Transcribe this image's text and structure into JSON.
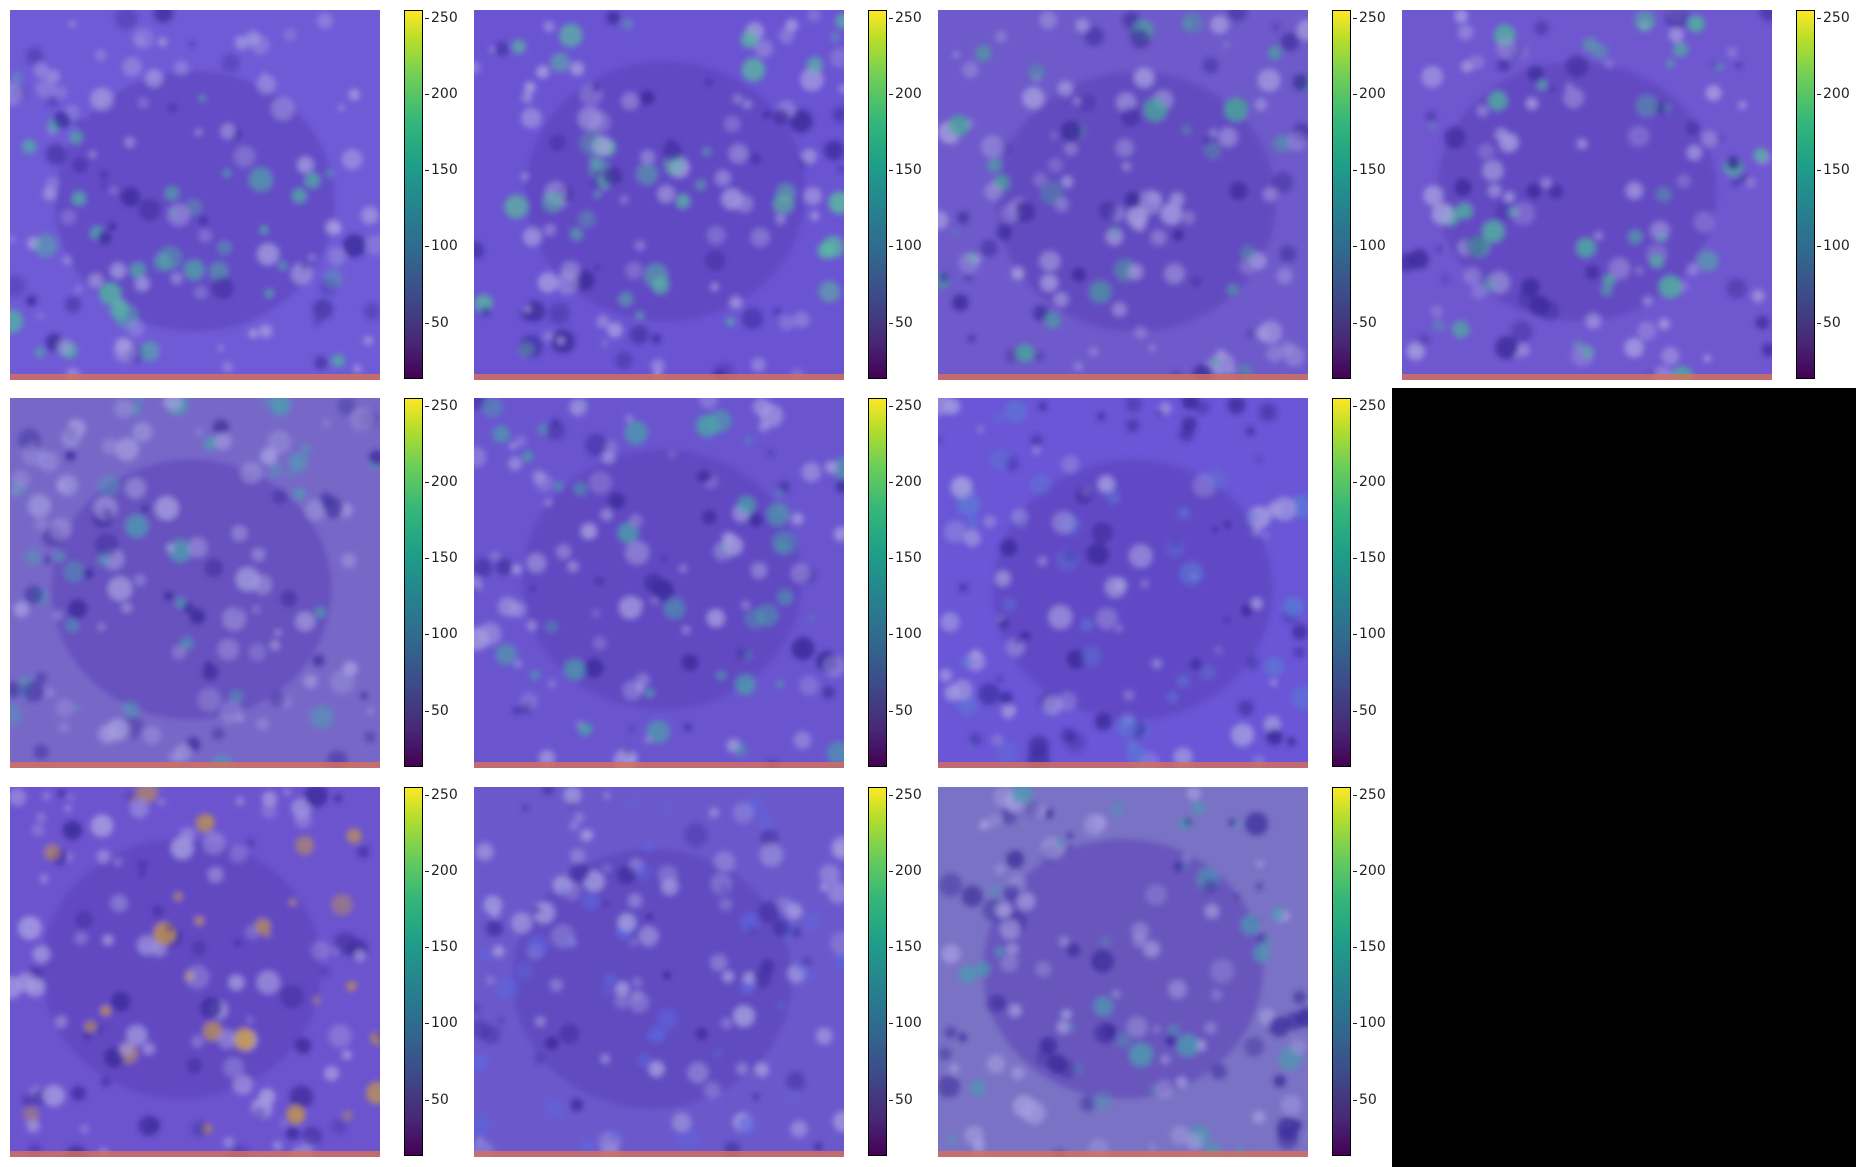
{
  "colorbar": {
    "ticks": [
      "250",
      "200",
      "150",
      "100",
      "50"
    ],
    "tick_values": [
      250,
      200,
      150,
      100,
      50
    ],
    "range": [
      13,
      255
    ],
    "colormap": "viridis"
  },
  "panels": [
    {
      "row": 0,
      "col": 0,
      "hue": "#6f5bd6",
      "hot": "#4fb7a0"
    },
    {
      "row": 0,
      "col": 1,
      "hue": "#6a54d2",
      "hot": "#5ab9a0"
    },
    {
      "row": 0,
      "col": 2,
      "hue": "#6e5aca",
      "hot": "#49a89a"
    },
    {
      "row": 0,
      "col": 3,
      "hue": "#6f57d0",
      "hot": "#4fb29d"
    },
    {
      "row": 1,
      "col": 0,
      "hue": "#7768c8",
      "hot": "#4c9fb0"
    },
    {
      "row": 1,
      "col": 1,
      "hue": "#6a55cf",
      "hot": "#4aa4a8"
    },
    {
      "row": 1,
      "col": 2,
      "hue": "#6a56d6",
      "hot": "#5b78d6"
    },
    {
      "row": 2,
      "col": 0,
      "hue": "#6c54cf",
      "hot": "#c79b45"
    },
    {
      "row": 2,
      "col": 1,
      "hue": "#6b59cc",
      "hot": "#5b66e0"
    },
    {
      "row": 2,
      "col": 2,
      "hue": "#7a72c4",
      "hot": "#4c9ab0"
    }
  ],
  "colors": {
    "background": "#ffffff",
    "empty_cell": "#000000"
  }
}
